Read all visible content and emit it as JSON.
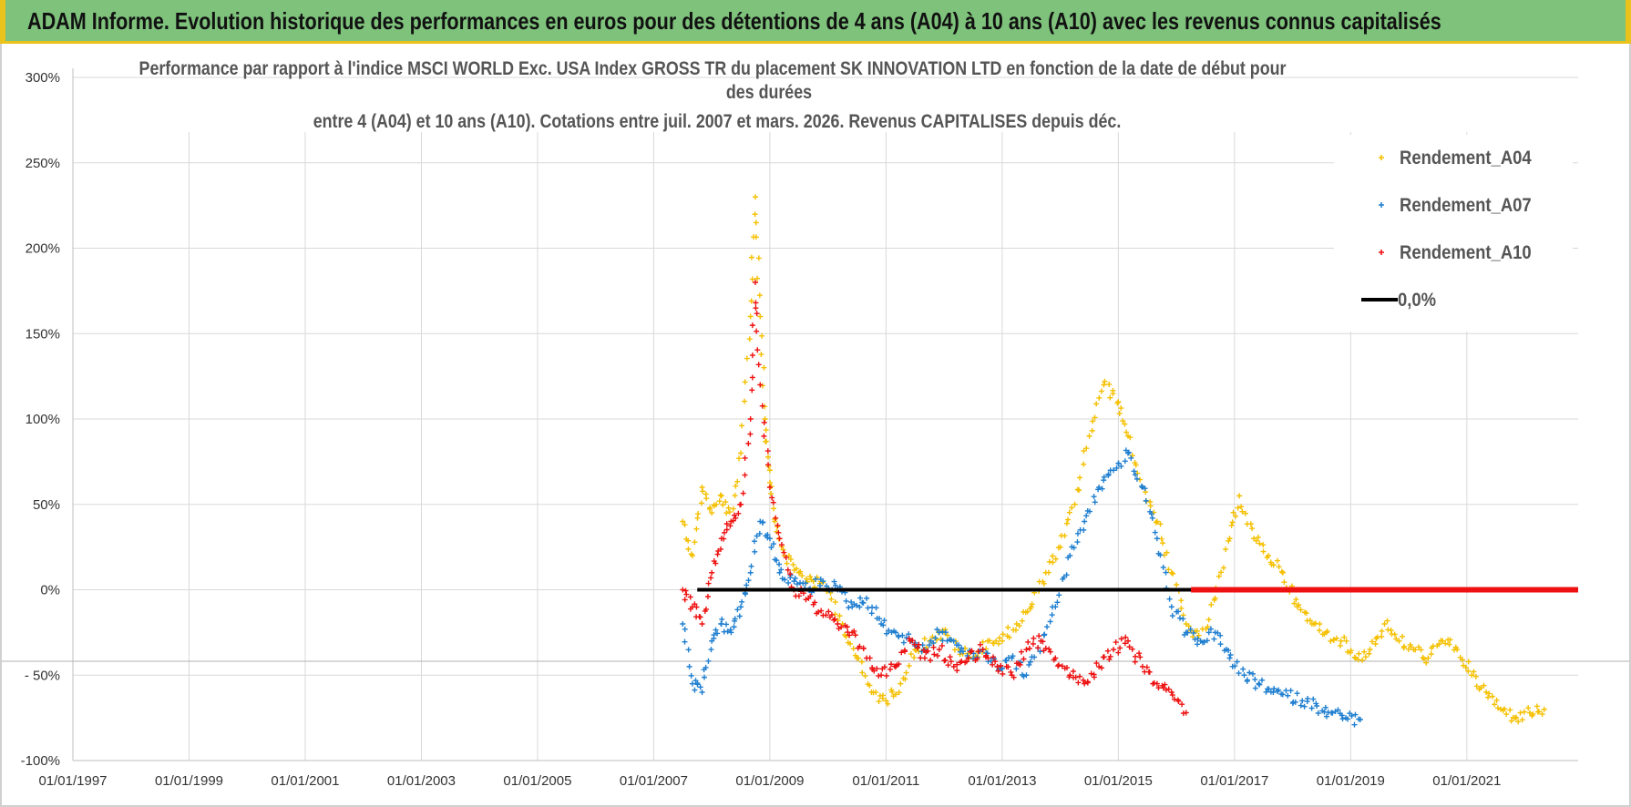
{
  "header": {
    "title": "ADAM Informe. Evolution historique des performances en euros pour des détentions de 4 ans (A04) à 10 ans (A10) avec les revenus connus capitalisés"
  },
  "colors": {
    "banner": "#7ec27b",
    "banner_border": "#e9c21b",
    "A04": "#f5c000",
    "A07": "#1f7fd0",
    "A10": "#ee1111",
    "zero": "#000000"
  },
  "chart_data": {
    "type": "scatter",
    "title_lines": [
      "Performance par rapport à l'indice MSCI WORLD Exc. USA Index GROSS TR  du placement SK INNOVATION LTD en fonction de la date de début pour",
      "des durées",
      "entre 4 (A04) et 10 ans (A10). Cotations entre juil. 2007 et mars. 2026. Revenus CAPITALISES depuis déc."
    ],
    "xlabel": "",
    "ylabel": "",
    "x_range": [
      "1997-01-01",
      "2022-12-01"
    ],
    "y_range": [
      -100,
      300
    ],
    "x_ticks": [
      "01/01/1997",
      "01/01/1999",
      "01/01/2001",
      "01/01/2003",
      "01/01/2005",
      "01/01/2007",
      "01/01/2009",
      "01/01/2011",
      "01/01/2013",
      "01/01/2015",
      "01/01/2017",
      "01/01/2019",
      "01/01/2021"
    ],
    "y_ticks": [
      "300%",
      "250%",
      "200%",
      "150%",
      "100%",
      "50%",
      "0%",
      "- 50%",
      "-100%"
    ],
    "y_tick_values": [
      300,
      250,
      200,
      150,
      100,
      50,
      0,
      -50,
      -100
    ],
    "grid": true,
    "legend_position": "top-right",
    "series": [
      {
        "name": "Rendement_A04",
        "marker": "+",
        "x": [
          "2007-07",
          "2007-09",
          "2007-11",
          "2008-01",
          "2008-03",
          "2008-05",
          "2008-07",
          "2008-09",
          "2008-10",
          "2008-11",
          "2008-12",
          "2009-01",
          "2009-02",
          "2009-04",
          "2009-07",
          "2009-10",
          "2010-01",
          "2010-04",
          "2010-07",
          "2010-10",
          "2011-01",
          "2011-04",
          "2011-07",
          "2011-10",
          "2012-01",
          "2012-04",
          "2012-07",
          "2012-10",
          "2013-01",
          "2013-04",
          "2013-07",
          "2013-10",
          "2014-01",
          "2014-04",
          "2014-07",
          "2014-10",
          "2015-01",
          "2015-03",
          "2015-06",
          "2015-09",
          "2015-12",
          "2016-03",
          "2016-06",
          "2016-09",
          "2016-12",
          "2017-02",
          "2017-05",
          "2017-08",
          "2017-11",
          "2018-02",
          "2018-05",
          "2018-08",
          "2018-11",
          "2019-02",
          "2019-05",
          "2019-08",
          "2019-11",
          "2020-02",
          "2020-05",
          "2020-08",
          "2020-11",
          "2021-02",
          "2021-05",
          "2021-08",
          "2021-11",
          "2022-02",
          "2022-05"
        ],
        "y": [
          40,
          20,
          60,
          45,
          55,
          40,
          80,
          160,
          230,
          160,
          100,
          70,
          40,
          20,
          10,
          5,
          0,
          -20,
          -40,
          -60,
          -65,
          -55,
          -35,
          -30,
          -25,
          -35,
          -40,
          -30,
          -30,
          -20,
          -10,
          10,
          25,
          50,
          90,
          120,
          110,
          90,
          60,
          40,
          10,
          -20,
          -30,
          -5,
          30,
          55,
          30,
          20,
          10,
          -10,
          -20,
          -25,
          -30,
          -40,
          -35,
          -20,
          -30,
          -35,
          -40,
          -30,
          -35,
          -50,
          -60,
          -70,
          -75,
          -72,
          -70
        ]
      },
      {
        "name": "Rendement_A07",
        "marker": "+",
        "x": [
          "2007-07",
          "2007-09",
          "2007-11",
          "2008-01",
          "2008-03",
          "2008-05",
          "2008-07",
          "2008-09",
          "2008-11",
          "2009-01",
          "2009-03",
          "2009-06",
          "2009-09",
          "2009-12",
          "2010-03",
          "2010-06",
          "2010-09",
          "2010-12",
          "2011-03",
          "2011-06",
          "2011-09",
          "2011-12",
          "2012-03",
          "2012-06",
          "2012-09",
          "2012-12",
          "2013-03",
          "2013-06",
          "2013-09",
          "2013-12",
          "2014-03",
          "2014-06",
          "2014-09",
          "2014-12",
          "2015-03",
          "2015-06",
          "2015-09",
          "2015-12",
          "2016-03",
          "2016-06",
          "2016-09",
          "2016-12",
          "2017-03",
          "2017-06",
          "2017-09",
          "2017-12",
          "2018-03",
          "2018-06",
          "2018-09",
          "2018-12",
          "2019-03"
        ],
        "y": [
          -20,
          -55,
          -60,
          -30,
          -20,
          -25,
          -10,
          10,
          40,
          30,
          10,
          5,
          0,
          5,
          0,
          -10,
          -5,
          -20,
          -25,
          -30,
          -35,
          -25,
          -30,
          -40,
          -35,
          -45,
          -40,
          -50,
          -30,
          -10,
          20,
          40,
          60,
          70,
          80,
          60,
          30,
          -10,
          -25,
          -30,
          -25,
          -40,
          -50,
          -55,
          -60,
          -62,
          -65,
          -68,
          -72,
          -75,
          -76
        ]
      },
      {
        "name": "Rendement_A10",
        "marker": "+",
        "x": [
          "2007-07",
          "2007-09",
          "2007-11",
          "2008-01",
          "2008-03",
          "2008-05",
          "2008-07",
          "2008-09",
          "2008-10",
          "2008-11",
          "2009-01",
          "2009-03",
          "2009-06",
          "2009-09",
          "2009-12",
          "2010-03",
          "2010-06",
          "2010-09",
          "2010-12",
          "2011-03",
          "2011-06",
          "2011-09",
          "2011-12",
          "2012-03",
          "2012-06",
          "2012-09",
          "2012-12",
          "2013-03",
          "2013-06",
          "2013-09",
          "2013-12",
          "2014-03",
          "2014-06",
          "2014-09",
          "2014-12",
          "2015-03",
          "2015-06",
          "2015-09",
          "2015-12",
          "2016-03"
        ],
        "y": [
          0,
          -10,
          -20,
          10,
          30,
          40,
          50,
          100,
          180,
          120,
          60,
          30,
          0,
          -5,
          -15,
          -20,
          -25,
          -40,
          -50,
          -45,
          -30,
          -40,
          -35,
          -45,
          -40,
          -35,
          -45,
          -50,
          -35,
          -30,
          -40,
          -50,
          -55,
          -45,
          -35,
          -30,
          -45,
          -55,
          -60,
          -72
        ]
      }
    ],
    "reference_line": {
      "name": "0,0%",
      "value": 0,
      "segments": [
        {
          "from": "2007-10",
          "to": "2016-04",
          "color": "#000000"
        },
        {
          "from": "2016-04",
          "to": "2022-12",
          "color": "#ee1111"
        }
      ]
    }
  }
}
